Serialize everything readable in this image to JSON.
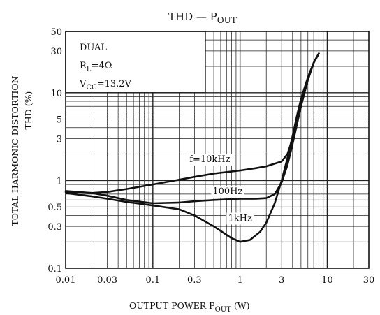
{
  "chart_data": {
    "type": "line",
    "title_main": "THD — P",
    "title_sub": "OUT",
    "xlabel_main": "OUTPUT POWER   P",
    "xlabel_sub": "OUT",
    "xlabel_unit": " (W)",
    "ylabel_line1": "TOTAL HARMONIC DISTORTION",
    "ylabel_line2": "THD (%)",
    "x_scale": "log",
    "y_scale": "log",
    "xlim": [
      0.01,
      30
    ],
    "ylim": [
      0.1,
      50
    ],
    "x_ticks": [
      {
        "v": 0.01,
        "label": "0.01"
      },
      {
        "v": 0.03,
        "label": "0.03"
      },
      {
        "v": 0.1,
        "label": "0.1"
      },
      {
        "v": 0.3,
        "label": "0.3"
      },
      {
        "v": 1,
        "label": "1"
      },
      {
        "v": 3,
        "label": "3"
      },
      {
        "v": 10,
        "label": "10"
      },
      {
        "v": 30,
        "label": "30"
      }
    ],
    "y_ticks": [
      {
        "v": 0.1,
        "label": "0.1"
      },
      {
        "v": 0.3,
        "label": "0.3"
      },
      {
        "v": 0.5,
        "label": "0.5"
      },
      {
        "v": 1,
        "label": "1"
      },
      {
        "v": 3,
        "label": "3"
      },
      {
        "v": 5,
        "label": "5"
      },
      {
        "v": 10,
        "label": "10"
      },
      {
        "v": 30,
        "label": "30"
      },
      {
        "v": 50,
        "label": "50"
      }
    ],
    "grid": true,
    "conditions": {
      "line1": "DUAL",
      "rl_main": "R",
      "rl_sub": "L",
      "rl_val": "=4Ω",
      "vcc_main": "V",
      "vcc_sub": "CC",
      "vcc_val": "=13.2V"
    },
    "series": [
      {
        "name": "f=10kHz",
        "x": [
          0.01,
          0.02,
          0.03,
          0.05,
          0.1,
          0.2,
          0.3,
          0.5,
          1,
          1.5,
          2,
          3,
          3.5,
          4,
          4.5,
          5,
          6,
          7,
          8
        ],
        "y": [
          0.74,
          0.72,
          0.74,
          0.8,
          0.9,
          1.02,
          1.1,
          1.2,
          1.3,
          1.38,
          1.45,
          1.65,
          2.0,
          3.0,
          5.0,
          8.0,
          15,
          22,
          28
        ]
      },
      {
        "name": "100Hz",
        "x": [
          0.01,
          0.02,
          0.03,
          0.05,
          0.1,
          0.2,
          0.3,
          0.5,
          1,
          1.5,
          2,
          2.5,
          3,
          3.5,
          4,
          5,
          6,
          7,
          8
        ],
        "y": [
          0.76,
          0.72,
          0.67,
          0.6,
          0.55,
          0.56,
          0.58,
          0.6,
          0.62,
          0.62,
          0.63,
          0.7,
          0.95,
          1.5,
          2.6,
          7,
          14,
          22,
          28
        ]
      },
      {
        "name": "1kHz",
        "x": [
          0.01,
          0.02,
          0.03,
          0.05,
          0.1,
          0.2,
          0.3,
          0.5,
          0.8,
          1,
          1.3,
          1.7,
          2,
          2.5,
          3,
          3.5,
          4,
          4.5,
          5,
          6,
          7,
          8
        ],
        "y": [
          0.72,
          0.66,
          0.62,
          0.57,
          0.52,
          0.47,
          0.4,
          0.3,
          0.22,
          0.2,
          0.21,
          0.26,
          0.33,
          0.55,
          1.0,
          1.8,
          3.2,
          5.5,
          8.5,
          15,
          22,
          28
        ]
      }
    ],
    "annotations": [
      {
        "text": "f=10kHz",
        "x": 0.45,
        "y": 1.62
      },
      {
        "text": "100Hz",
        "x": 0.72,
        "y": 0.7
      },
      {
        "text": "1kHz",
        "x": 1.0,
        "y": 0.345
      }
    ]
  }
}
